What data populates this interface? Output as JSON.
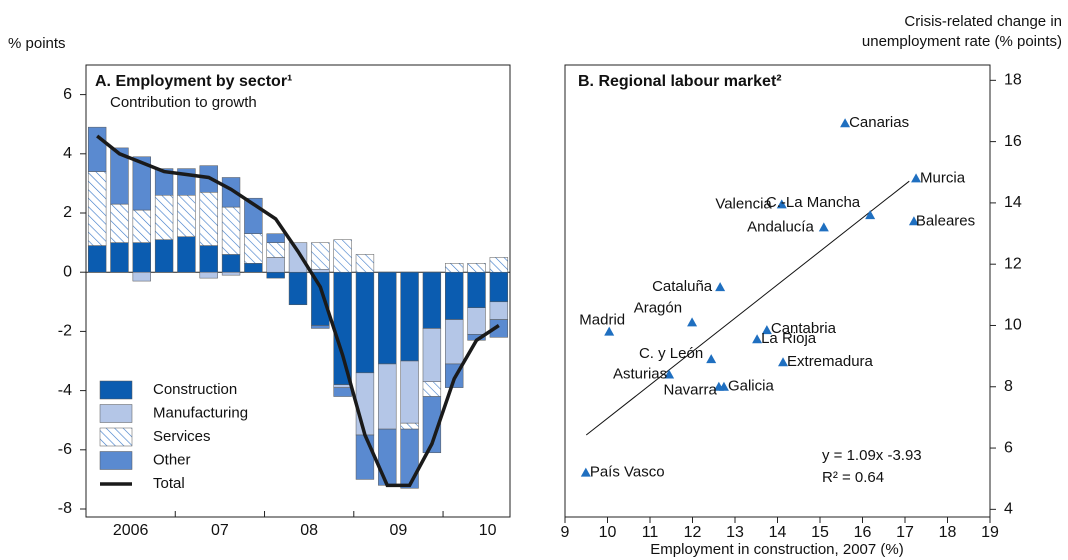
{
  "chart_data": [
    {
      "type": "stacked_bar",
      "title": "A. Employment by sector¹",
      "subtitle": "Contribution to growth",
      "y_label": "% points",
      "categories": [
        null,
        "2006",
        null,
        null,
        null,
        "07",
        null,
        null,
        null,
        "08",
        null,
        null,
        null,
        "09",
        null,
        null,
        null,
        "10",
        null
      ],
      "ylim": [
        -8.27,
        7
      ],
      "yticks": [
        -8,
        -6,
        -4,
        -2,
        0,
        2,
        4,
        6
      ],
      "series": [
        {
          "name": "Construction",
          "color": "#0b5cb0",
          "values": [
            0.9,
            1.0,
            1.0,
            1.1,
            1.2,
            0.9,
            0.6,
            0.3,
            -0.2,
            -1.1,
            -1.8,
            -3.8,
            -3.4,
            -3.1,
            -3.0,
            -1.9,
            -1.6,
            -1.2,
            -1.0
          ]
        },
        {
          "name": "Manufacturing",
          "color": "#b4c6e7",
          "values": [
            0,
            0,
            -0.3,
            0,
            0,
            -0.2,
            -0.1,
            0,
            0.5,
            1.0,
            0.1,
            -0.1,
            -2.1,
            -2.2,
            -2.1,
            -1.8,
            -1.5,
            -0.9,
            -0.6
          ]
        },
        {
          "name": "Services",
          "color": "#3a78c8",
          "hatch": true,
          "values": [
            2.5,
            1.3,
            1.1,
            1.5,
            1.4,
            1.8,
            1.6,
            1.0,
            0.5,
            0,
            0.9,
            1.1,
            0.6,
            0,
            -0.2,
            -0.5,
            0.3,
            0.3,
            0.5
          ]
        },
        {
          "name": "Other",
          "color": "#5a8ad0",
          "values": [
            1.5,
            1.9,
            1.8,
            0.9,
            0.9,
            0.9,
            1.0,
            1.2,
            0.3,
            0,
            -0.1,
            -0.3,
            -1.5,
            -1.9,
            -2.0,
            -1.9,
            -0.8,
            -0.2,
            -0.6
          ]
        },
        {
          "name": "Total",
          "color": "#1a1a1a",
          "kind": "line",
          "values": [
            4.6,
            4.0,
            3.7,
            3.4,
            3.3,
            3.2,
            2.8,
            2.3,
            1.8,
            0.7,
            -0.5,
            -2.8,
            -5.5,
            -7.2,
            -7.2,
            -5.8,
            -3.6,
            -2.3,
            -1.8
          ]
        }
      ]
    },
    {
      "type": "scatter",
      "title": "B. Regional labour market²",
      "y_label": [
        "Crisis-related change in",
        "unemployment rate (% points)"
      ],
      "x_label": "Employment in construction, 2007 (%)",
      "xlim": [
        9,
        19
      ],
      "xticks": [
        9,
        10,
        11,
        12,
        13,
        14,
        15,
        16,
        17,
        18,
        19
      ],
      "ylim": [
        3.75,
        18.5
      ],
      "yticks": [
        4,
        6,
        8,
        10,
        12,
        14,
        16,
        18
      ],
      "color": "#1f6fc0",
      "labels": [
        "Canarias",
        "Murcia",
        "Valencia",
        "C.-La Mancha",
        "Baleares",
        "Andalucía",
        "Cataluña",
        "Aragón",
        "Madrid",
        "Cantabria",
        "La Rioja",
        "C. y León",
        "Extremadura",
        "Asturias",
        "Navarra",
        "Galicia",
        "País Vasco"
      ],
      "x": [
        15.59,
        17.26,
        14.1,
        16.18,
        17.21,
        15.09,
        12.65,
        11.99,
        10.04,
        13.75,
        13.52,
        12.44,
        14.13,
        11.45,
        12.62,
        12.74,
        9.49
      ],
      "values": [
        16.6,
        14.8,
        13.95,
        13.6,
        13.4,
        13.2,
        11.25,
        10.1,
        9.8,
        9.85,
        9.55,
        8.9,
        8.8,
        8.4,
        8.0,
        8.0,
        5.2
      ],
      "trendline": {
        "slope": 1.09,
        "intercept": -3.93,
        "xrange": [
          9.5,
          17.1
        ]
      },
      "annotations": [
        "y   = 1.09x -3.93",
        "R² = 0.64"
      ]
    }
  ]
}
